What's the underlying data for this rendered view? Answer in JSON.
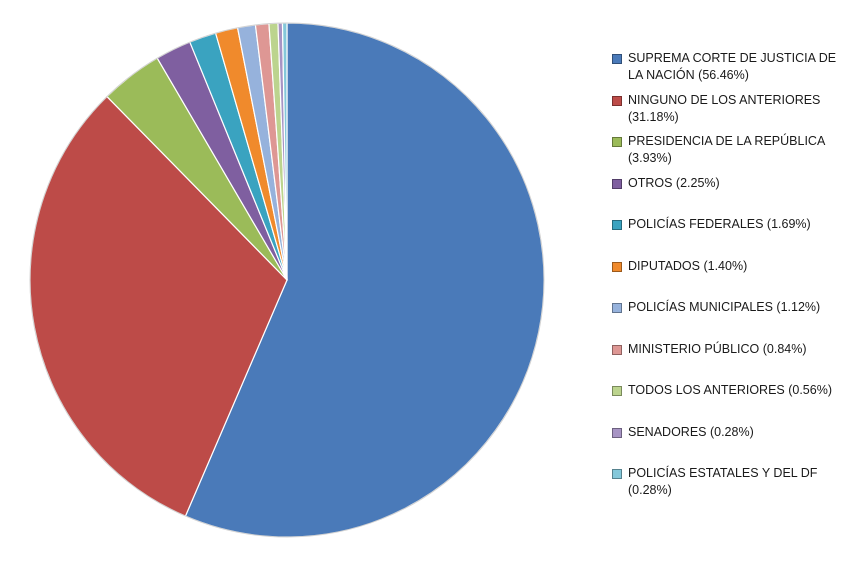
{
  "chart_data": {
    "type": "pie",
    "title": "",
    "legend_position": "right",
    "slices": [
      {
        "label": "SUPREMA CORTE DE JUSTICIA DE LA NACIÓN (56.46%)",
        "value": 56.46,
        "color": "#4a7ab9"
      },
      {
        "label": "NINGUNO DE LOS ANTERIORES (31.18%)",
        "value": 31.18,
        "color": "#bd4b48"
      },
      {
        "label": "PRESIDENCIA DE LA REPÚBLICA (3.93%)",
        "value": 3.93,
        "color": "#9bbb59"
      },
      {
        "label": "OTROS (2.25%)",
        "value": 2.25,
        "color": "#7f5fa0"
      },
      {
        "label": "POLICÍAS FEDERALES (1.69%)",
        "value": 1.69,
        "color": "#3aa3c0"
      },
      {
        "label": "DIPUTADOS (1.40%)",
        "value": 1.4,
        "color": "#f08a2c"
      },
      {
        "label": "POLICÍAS MUNICIPALES (1.12%)",
        "value": 1.12,
        "color": "#96b2dc"
      },
      {
        "label": "MINISTERIO PÚBLICO (0.84%)",
        "value": 0.84,
        "color": "#de9794"
      },
      {
        "label": "TODOS LOS ANTERIORES (0.56%)",
        "value": 0.56,
        "color": "#bcd48e"
      },
      {
        "label": "SENADORES (0.28%)",
        "value": 0.28,
        "color": "#a794c4"
      },
      {
        "label": "POLICÍAS ESTATALES Y DEL DF (0.28%)",
        "value": 0.28,
        "color": "#84c8da"
      }
    ]
  }
}
